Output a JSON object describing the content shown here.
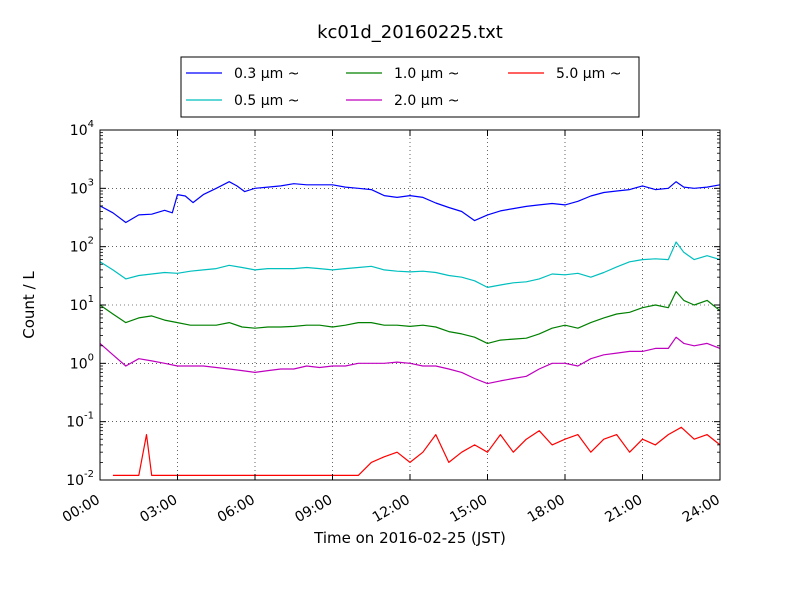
{
  "chart_data": {
    "type": "line",
    "title": "kc01d_20160225.txt",
    "xlabel": "Time on 2016-02-25 (JST)",
    "ylabel": "Count / L",
    "x_unit": "hour of day",
    "xlim": [
      0,
      24
    ],
    "ylim": [
      0.01,
      10000
    ],
    "yscale": "log",
    "grid": true,
    "grid_style": "dotted",
    "legend_position": "top-center",
    "x_ticks": [
      "00:00",
      "03:00",
      "06:00",
      "09:00",
      "12:00",
      "15:00",
      "18:00",
      "21:00",
      "24:00"
    ],
    "y_ticks": [
      {
        "base": "10",
        "exp": "-2"
      },
      {
        "base": "10",
        "exp": "-1"
      },
      {
        "base": "10",
        "exp": "0"
      },
      {
        "base": "10",
        "exp": "1"
      },
      {
        "base": "10",
        "exp": "2"
      },
      {
        "base": "10",
        "exp": "3"
      },
      {
        "base": "10",
        "exp": "4"
      }
    ],
    "series": [
      {
        "name": "0.3 μm ~",
        "color": "#0000ff",
        "x": [
          0,
          0.5,
          1,
          1.5,
          2,
          2.5,
          2.8,
          3,
          3.3,
          3.6,
          4,
          4.5,
          5,
          5.3,
          5.6,
          6,
          6.5,
          7,
          7.5,
          8,
          8.5,
          9,
          9.5,
          10,
          10.5,
          11,
          11.5,
          12,
          12.5,
          13,
          13.5,
          14,
          14.5,
          15,
          15.5,
          16,
          16.5,
          17,
          17.5,
          18,
          18.5,
          19,
          19.5,
          20,
          20.5,
          21,
          21.5,
          22,
          22.3,
          22.6,
          23,
          23.5,
          24
        ],
        "values": [
          500,
          380,
          260,
          350,
          360,
          420,
          380,
          780,
          740,
          570,
          780,
          1000,
          1300,
          1100,
          880,
          1000,
          1050,
          1100,
          1200,
          1150,
          1150,
          1150,
          1050,
          1000,
          950,
          750,
          700,
          750,
          700,
          560,
          470,
          400,
          280,
          350,
          410,
          450,
          490,
          520,
          550,
          520,
          600,
          740,
          850,
          900,
          950,
          1100,
          950,
          1000,
          1300,
          1050,
          1000,
          1050,
          1150
        ]
      },
      {
        "name": "0.5 μm ~",
        "color": "#00bfbf",
        "x": [
          0,
          0.5,
          1,
          1.5,
          2,
          2.5,
          3,
          3.5,
          4,
          4.5,
          5,
          5.5,
          6,
          6.5,
          7,
          7.5,
          8,
          8.5,
          9,
          9.5,
          10,
          10.5,
          11,
          11.5,
          12,
          12.5,
          13,
          13.5,
          14,
          14.5,
          15,
          15.5,
          16,
          16.5,
          17,
          17.5,
          18,
          18.5,
          19,
          19.5,
          20,
          20.5,
          21,
          21.5,
          22,
          22.3,
          22.6,
          23,
          23.5,
          24
        ],
        "values": [
          55,
          40,
          28,
          32,
          34,
          36,
          35,
          38,
          40,
          42,
          48,
          44,
          40,
          42,
          42,
          42,
          44,
          42,
          40,
          42,
          44,
          46,
          40,
          38,
          37,
          38,
          36,
          32,
          30,
          26,
          20,
          22,
          24,
          25,
          28,
          34,
          33,
          35,
          30,
          36,
          45,
          55,
          60,
          62,
          60,
          120,
          80,
          60,
          70,
          60
        ]
      },
      {
        "name": "1.0 μm ~",
        "color": "#008000",
        "x": [
          0,
          0.5,
          1,
          1.5,
          2,
          2.5,
          3,
          3.5,
          4,
          4.5,
          5,
          5.5,
          6,
          6.5,
          7,
          7.5,
          8,
          8.5,
          9,
          9.5,
          10,
          10.5,
          11,
          11.5,
          12,
          12.5,
          13,
          13.5,
          14,
          14.5,
          15,
          15.5,
          16,
          16.5,
          17,
          17.5,
          18,
          18.5,
          19,
          19.5,
          20,
          20.5,
          21,
          21.5,
          22,
          22.3,
          22.6,
          23,
          23.5,
          24
        ],
        "values": [
          10,
          7,
          5,
          6,
          6.5,
          5.5,
          5,
          4.5,
          4.5,
          4.5,
          5,
          4.2,
          4,
          4.2,
          4.2,
          4.3,
          4.5,
          4.5,
          4.2,
          4.5,
          5,
          5,
          4.5,
          4.5,
          4.3,
          4.5,
          4.2,
          3.5,
          3.2,
          2.8,
          2.2,
          2.5,
          2.6,
          2.7,
          3.2,
          4,
          4.5,
          4,
          5,
          6,
          7,
          7.5,
          9,
          10,
          9,
          17,
          12,
          10,
          12,
          8
        ]
      },
      {
        "name": "2.0 μm ~",
        "color": "#bf00bf",
        "x": [
          0,
          0.5,
          1,
          1.5,
          2,
          2.5,
          3,
          3.5,
          4,
          4.5,
          5,
          5.5,
          6,
          6.5,
          7,
          7.5,
          8,
          8.5,
          9,
          9.5,
          10,
          10.5,
          11,
          11.5,
          12,
          12.5,
          13,
          13.5,
          14,
          14.5,
          15,
          15.5,
          16,
          16.5,
          17,
          17.5,
          18,
          18.5,
          19,
          19.5,
          20,
          20.5,
          21,
          21.5,
          22,
          22.3,
          22.6,
          23,
          23.5,
          24
        ],
        "values": [
          2.2,
          1.4,
          0.9,
          1.2,
          1.1,
          1,
          0.9,
          0.9,
          0.9,
          0.85,
          0.8,
          0.75,
          0.7,
          0.75,
          0.8,
          0.8,
          0.9,
          0.85,
          0.9,
          0.9,
          1,
          1,
          1,
          1.05,
          1,
          0.9,
          0.9,
          0.8,
          0.7,
          0.55,
          0.45,
          0.5,
          0.55,
          0.6,
          0.8,
          1,
          1,
          0.9,
          1.2,
          1.4,
          1.5,
          1.6,
          1.6,
          1.8,
          1.8,
          2.8,
          2.2,
          2,
          2.2,
          1.8
        ]
      },
      {
        "name": "5.0 μm ~",
        "color": "#ff0000",
        "x": [
          0.5,
          1,
          1.5,
          1.8,
          2,
          2.5,
          3,
          3.5,
          4,
          4.5,
          5,
          5.5,
          6,
          6.5,
          7,
          7.5,
          8,
          8.5,
          9,
          9.5,
          10,
          10.5,
          11,
          11.5,
          12,
          12.5,
          13,
          13.5,
          14,
          14.5,
          15,
          15.5,
          16,
          16.5,
          17,
          17.5,
          18,
          18.5,
          19,
          19.5,
          20,
          20.5,
          21,
          21.5,
          22,
          22.5,
          23,
          23.5,
          24
        ],
        "values": [
          0.012,
          0.012,
          0.012,
          0.06,
          0.012,
          0.012,
          0.012,
          0.012,
          0.012,
          0.012,
          0.012,
          0.012,
          0.012,
          0.012,
          0.012,
          0.012,
          0.012,
          0.012,
          0.012,
          0.012,
          0.012,
          0.02,
          0.025,
          0.03,
          0.02,
          0.03,
          0.06,
          0.02,
          0.03,
          0.04,
          0.03,
          0.06,
          0.03,
          0.05,
          0.07,
          0.04,
          0.05,
          0.06,
          0.03,
          0.05,
          0.06,
          0.03,
          0.05,
          0.04,
          0.06,
          0.08,
          0.05,
          0.06,
          0.04
        ]
      }
    ]
  }
}
